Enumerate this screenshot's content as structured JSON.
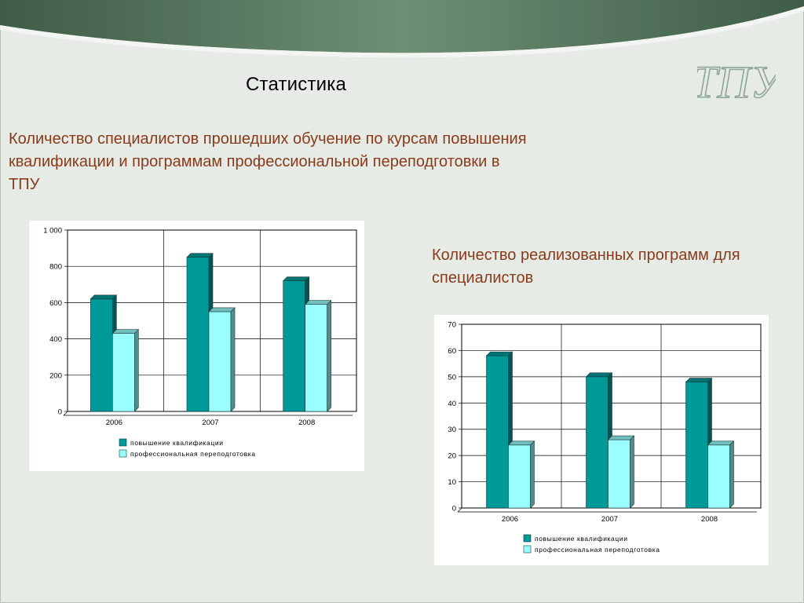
{
  "slide": {
    "title": "Статистика",
    "subtitle_1": "Количество специалистов прошедших обучение по курсам повышения квалификации и программам профессиональной переподготовки в ТПУ",
    "subtitle_2": "Количество реализованных программ для специалистов",
    "logo_text": "ТПУ"
  },
  "colors": {
    "header_dark": "#3f5f48",
    "header_light": "#6f8f76",
    "title_red": "#8a3a1a",
    "series_1": "#009999",
    "series_2": "#99ffff",
    "logo": "#8fa694"
  },
  "chart_data": [
    {
      "type": "bar",
      "categories": [
        "2006",
        "2007",
        "2008"
      ],
      "series": [
        {
          "name": "повышение квалификации",
          "values": [
            620,
            850,
            720
          ]
        },
        {
          "name": "профессиональная переподготовка",
          "values": [
            430,
            550,
            590
          ]
        }
      ],
      "ylim": [
        0,
        1000
      ],
      "yticks": [
        0,
        200,
        400,
        600,
        800,
        1000
      ],
      "ytick_labels": [
        "0",
        "200",
        "400",
        "600",
        "800",
        "1 000"
      ],
      "grid": true,
      "legend": "bottom"
    },
    {
      "type": "bar",
      "categories": [
        "2006",
        "2007",
        "2008"
      ],
      "series": [
        {
          "name": "повышение квалификации",
          "values": [
            58,
            50,
            48
          ]
        },
        {
          "name": "профессиональная переподготовка",
          "values": [
            24,
            26,
            24
          ]
        }
      ],
      "ylim": [
        0,
        70
      ],
      "yticks": [
        0,
        10,
        20,
        30,
        40,
        50,
        60,
        70
      ],
      "ytick_labels": [
        "0",
        "10",
        "20",
        "30",
        "40",
        "50",
        "60",
        "70"
      ],
      "grid": true,
      "legend": "bottom"
    }
  ]
}
